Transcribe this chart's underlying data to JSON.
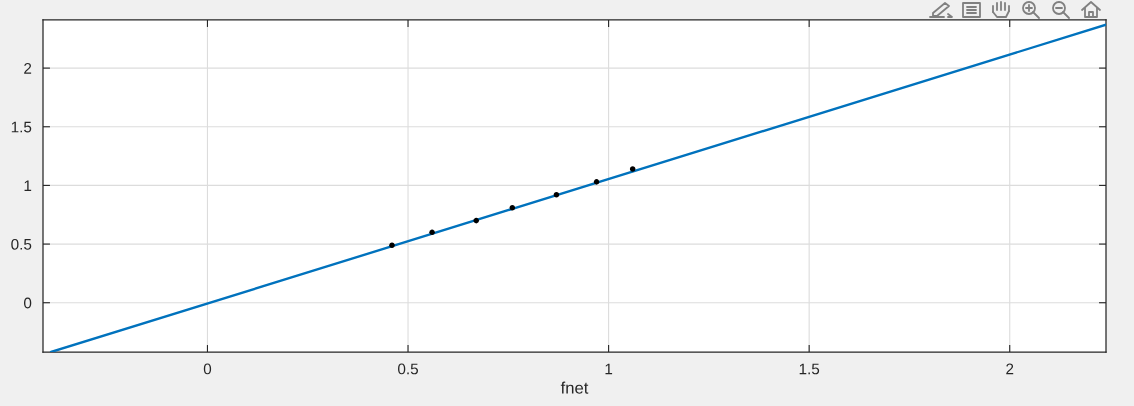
{
  "chart_data": {
    "type": "scatter",
    "xlabel": "fnet",
    "xlim": [
      -0.41,
      2.24
    ],
    "ylim": [
      -0.42,
      2.41
    ],
    "xticks": [
      0,
      0.5,
      1,
      1.5,
      2
    ],
    "yticks": [
      0,
      0.5,
      1,
      1.5,
      2
    ],
    "grid": true,
    "series": [
      {
        "color": "#000000",
        "marker": "circle",
        "x": [
          0.46,
          0.56,
          0.67,
          0.76,
          0.87,
          0.97,
          1.06
        ],
        "values": [
          0.49,
          0.6,
          0.7,
          0.81,
          0.92,
          1.03,
          1.14
        ]
      },
      {
        "type": "line",
        "color": "#0072bd",
        "line_style": "solid",
        "x": [
          -0.39,
          2.24
        ],
        "values": [
          -0.42,
          2.37
        ]
      }
    ]
  }
}
